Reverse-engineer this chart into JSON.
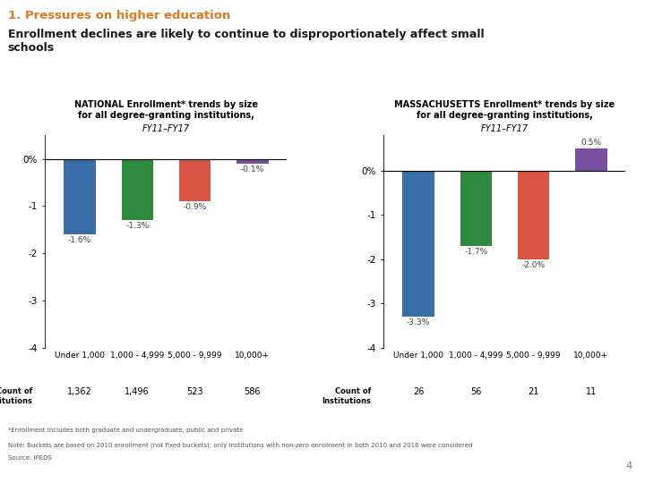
{
  "title_line1": "1. Pressures on higher education",
  "title_line2": "Enrollment declines are likely to continue to disproportionately affect small\nschools",
  "title_color": "#E07820",
  "subtitle_color": "#1A1A1A",
  "national_title1": "NATIONAL Enrollment* trends by size",
  "national_title2": "for all degree-granting institutions,",
  "national_title3": "FY11–FY17",
  "national_categories": [
    "Under 1,000",
    "1,000 - 4,999",
    "5,000 - 9,999",
    "10,000+"
  ],
  "national_values": [
    -1.6,
    -1.3,
    -0.9,
    -0.1
  ],
  "national_colors": [
    "#3A6EA8",
    "#2E8B3D",
    "#D95443",
    "#7B4FA0"
  ],
  "national_labels": [
    "-1.6%",
    "-1.3%",
    "-0.9%",
    "-0.1%"
  ],
  "national_counts": [
    "1,362",
    "1,496",
    "523",
    "586"
  ],
  "mass_title1": "MASSACHUSETTS Enrollment* trends by size",
  "mass_title2": "for all degree-granting institutions,",
  "mass_title3": "FY11–FY17",
  "mass_categories": [
    "Under 1,000",
    "1,000 - 4,999",
    "5,000 - 9,999",
    "10,000+"
  ],
  "mass_values": [
    -3.3,
    -1.7,
    -2.0,
    0.5
  ],
  "mass_colors": [
    "#3A6EA8",
    "#2E8B3D",
    "#D95443",
    "#7B4FA0"
  ],
  "mass_labels": [
    "-3.3%",
    "-1.7%",
    "-2.0%",
    "0.5%"
  ],
  "mass_counts": [
    "26",
    "56",
    "21",
    "11"
  ],
  "national_ylim": [
    -4,
    0.5
  ],
  "mass_ylim": [
    -4,
    0.8
  ],
  "yticks": [
    0,
    -1,
    -2,
    -3,
    -4
  ],
  "bar_width": 0.55,
  "count_label": "Count of\nInstitutions",
  "footnote1": "*Enrollment includes both graduate and undergraduate, public and private",
  "footnote2": "Note: Buckets are based on 2010 enrollment (not fixed buckets); only institutions with non-zero enrollment in both 2010 and 2016 were considered",
  "footnote3": "Source: IPEDS",
  "page_num": "4"
}
